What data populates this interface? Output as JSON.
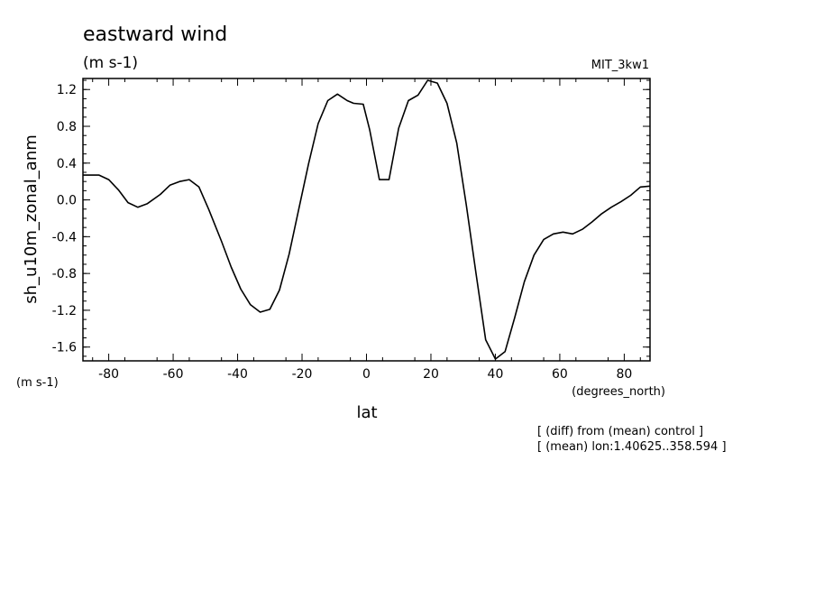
{
  "chart_data": {
    "type": "line",
    "title": "eastward wind",
    "subtitle": "(m s-1)",
    "model": "MIT_3kw1",
    "xlabel": "lat",
    "xunits": "(degrees_north)",
    "ylabel": "sh_u10m_zonal_anm",
    "yunits": "(m s-1)",
    "xlim": [
      -88,
      88
    ],
    "ylim": [
      -1.75,
      1.32
    ],
    "xticks": [
      -80,
      -60,
      -40,
      -20,
      0,
      20,
      40,
      60,
      80
    ],
    "xtick_labels": [
      "-80",
      "-60",
      "-40",
      "-20",
      "0",
      "20",
      "40",
      "60",
      "80"
    ],
    "yticks": [
      1.2,
      0.8,
      0.4,
      0.0,
      -0.4,
      -0.8,
      -1.2,
      -1.6
    ],
    "ytick_labels": [
      "1.2",
      "0.8",
      "0.4",
      "0.0",
      "-0.4",
      "-0.8",
      "-1.2",
      "-1.6"
    ],
    "grid": false,
    "notes": [
      "[ (diff) from (mean) control ]",
      "[ (mean) lon:1.40625..358.594 ]"
    ],
    "series": [
      {
        "x": [
          -88,
          -86,
          -83,
          -80,
          -77,
          -74,
          -71,
          -68,
          -64,
          -61,
          -58,
          -55,
          -52,
          -49,
          -45,
          -42,
          -39,
          -36,
          -33,
          -30,
          -27,
          -24,
          -21,
          -18,
          -15,
          -12,
          -9,
          -6,
          -4,
          -1,
          1,
          4,
          7,
          10,
          13,
          16,
          19,
          22,
          25,
          28,
          31,
          34,
          37,
          40,
          43,
          46,
          49,
          52,
          55,
          58,
          61,
          64,
          67,
          70,
          73,
          76,
          79,
          82,
          85,
          88
        ],
        "y": [
          0.27,
          0.27,
          0.27,
          0.22,
          0.11,
          -0.03,
          -0.08,
          -0.04,
          0.06,
          0.16,
          0.2,
          0.22,
          0.14,
          -0.1,
          -0.45,
          -0.73,
          -0.97,
          -1.14,
          -1.22,
          -1.19,
          -0.98,
          -0.59,
          -0.1,
          0.39,
          0.83,
          1.08,
          1.15,
          1.08,
          1.05,
          1.04,
          0.76,
          0.22,
          0.22,
          0.78,
          1.08,
          1.14,
          1.3,
          1.27,
          1.05,
          0.62,
          -0.06,
          -0.8,
          -1.52,
          -1.73,
          -1.65,
          -1.28,
          -0.89,
          -0.6,
          -0.43,
          -0.37,
          -0.35,
          -0.37,
          -0.32,
          -0.24,
          -0.15,
          -0.08,
          -0.02,
          0.05,
          0.14,
          0.15
        ]
      }
    ]
  }
}
